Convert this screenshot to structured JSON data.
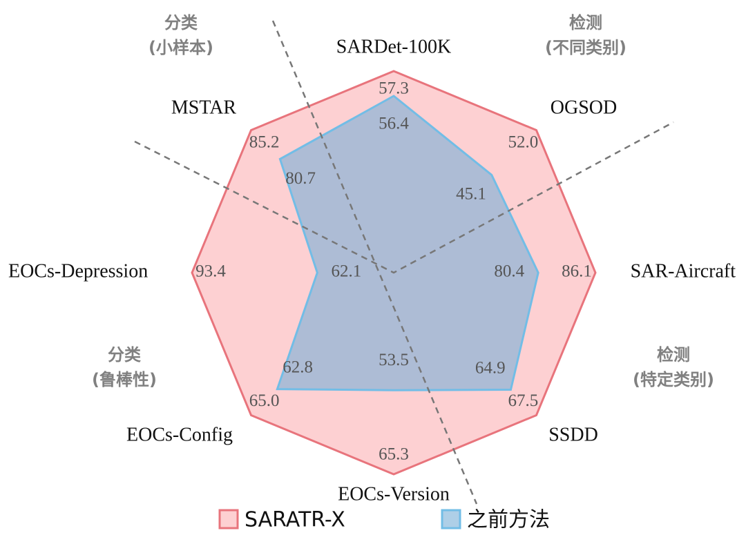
{
  "chart_data": {
    "type": "radar",
    "categories": [
      "SARDet-100K",
      "OGSOD",
      "SAR-Aircraft",
      "SSDD",
      "EOCs-Version",
      "EOCs-Config",
      "EOCs-Depression",
      "MSTAR"
    ],
    "ranges": [
      [
        50,
        57.3
      ],
      [
        30,
        52.0
      ],
      [
        66,
        86.1
      ],
      [
        53,
        67.5
      ],
      [
        37,
        65.3
      ],
      [
        53,
        65.0
      ],
      [
        43,
        93.4
      ],
      [
        63,
        85.2
      ]
    ],
    "series": [
      {
        "name": "SARATR-X",
        "color": "#e8747c",
        "values": [
          57.3,
          52.0,
          86.1,
          67.5,
          65.3,
          65.0,
          93.4,
          85.2
        ],
        "value_labels": [
          "57.3",
          "52.0",
          "86.1",
          "67.5",
          "65.3",
          "65.0",
          "93.4",
          "85.2"
        ]
      },
      {
        "name": "之前方法",
        "color": "#72bde6",
        "values": [
          56.4,
          45.1,
          80.4,
          64.9,
          53.5,
          62.8,
          62.1,
          80.7
        ],
        "value_labels": [
          "56.4",
          "45.1",
          "80.4",
          "64.9",
          "53.5",
          "62.8",
          "62.1",
          "80.7"
        ]
      }
    ],
    "annotations": [
      [
        "分类",
        "(小样本)"
      ],
      [
        "检测",
        "(不同类别)"
      ],
      [
        "检测",
        "(特定类别)"
      ],
      [
        "分类",
        "(鲁棒性)"
      ]
    ]
  }
}
